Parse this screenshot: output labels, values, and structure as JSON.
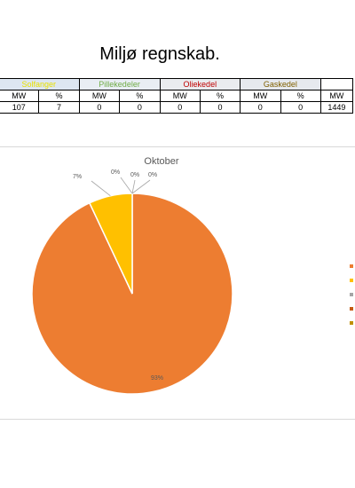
{
  "page_title": "Miljø regnskab.",
  "table": {
    "groups": [
      {
        "label": "Solfanger",
        "color": "#e8e000",
        "bg": "#dde6f1"
      },
      {
        "label": "Pillekedeler",
        "color": "#70ad47",
        "bg": "#e9eef4"
      },
      {
        "label": "Oliekedel",
        "color": "#c00000",
        "bg": "#eaecef"
      },
      {
        "label": "Gaskedel",
        "color": "#806000",
        "bg": "#e6e9ee"
      }
    ],
    "unit_mw": "MW",
    "unit_pct": "%",
    "row": [
      "107",
      "7",
      "0",
      "0",
      "0",
      "0",
      "0",
      "0",
      "1449"
    ]
  },
  "chart_data": {
    "type": "pie",
    "title": "Oktober",
    "series": [
      {
        "name": "",
        "value": 93,
        "label": "93%",
        "color": "#ed7d31"
      },
      {
        "name": "",
        "value": 7,
        "label": "7%",
        "color": "#ffc000"
      },
      {
        "name": "",
        "value": 0,
        "label": "0%",
        "color": "#a5a5a5"
      },
      {
        "name": "",
        "value": 0,
        "label": "0%",
        "color": "#c55a11"
      },
      {
        "name": "",
        "value": 0,
        "label": "0%",
        "color": "#bf9000"
      }
    ],
    "legend_position": "right"
  }
}
